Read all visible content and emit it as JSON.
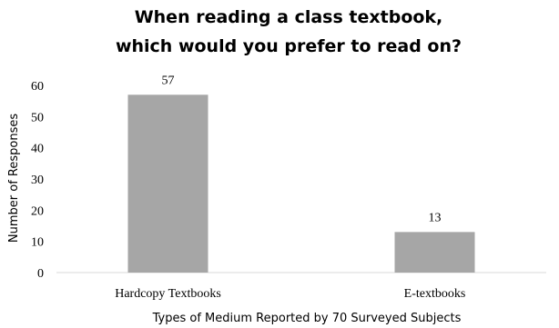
{
  "chart_data": {
    "type": "bar",
    "title_lines": [
      "When reading a class textbook,",
      "which would you prefer to read on?"
    ],
    "categories": [
      "Hardcopy Textbooks",
      "E-textbooks"
    ],
    "values": [
      57,
      13
    ],
    "data_labels": [
      "57",
      "13"
    ],
    "xlabel": "Types of Medium Reported by 70 Surveyed Subjects",
    "ylabel": "Number of Responses",
    "ylim": [
      0,
      60
    ],
    "yticks": [
      0,
      10,
      20,
      30,
      40,
      50,
      60
    ],
    "ytick_labels": [
      "0",
      "10",
      "20",
      "30",
      "40",
      "50",
      "60"
    ],
    "grid": false,
    "legend": "none",
    "bar_color": "#a6a6a6",
    "axis_color": "#d9d9d9"
  }
}
